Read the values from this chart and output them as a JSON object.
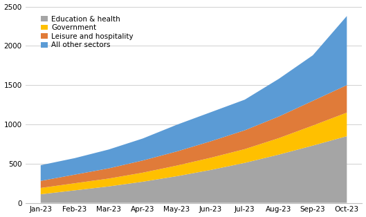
{
  "months": [
    "Jan-23",
    "Feb-23",
    "Mar-23",
    "Apr-23",
    "May-23",
    "Jun-23",
    "Jul-23",
    "Aug-23",
    "Sep-23",
    "Oct-23"
  ],
  "education_health": [
    110,
    160,
    210,
    270,
    340,
    420,
    510,
    615,
    730,
    850
  ],
  "government": [
    80,
    90,
    100,
    115,
    135,
    155,
    175,
    210,
    255,
    300
  ],
  "leisure_hosp": [
    90,
    110,
    130,
    155,
    180,
    210,
    240,
    275,
    315,
    350
  ],
  "all_other": [
    200,
    210,
    240,
    280,
    340,
    370,
    390,
    480,
    580,
    880
  ],
  "colors": {
    "education_health": "#a5a5a5",
    "government": "#ffc000",
    "leisure_hosp": "#e07b39",
    "all_other": "#5b9bd5"
  },
  "legend_labels": [
    "Education & health",
    "Government",
    "Leisure and hospitality",
    "All other sectors"
  ],
  "ylim": [
    0,
    2500
  ],
  "yticks": [
    0,
    500,
    1000,
    1500,
    2000,
    2500
  ],
  "background_color": "#ffffff",
  "grid_color": "#d0d0d0"
}
